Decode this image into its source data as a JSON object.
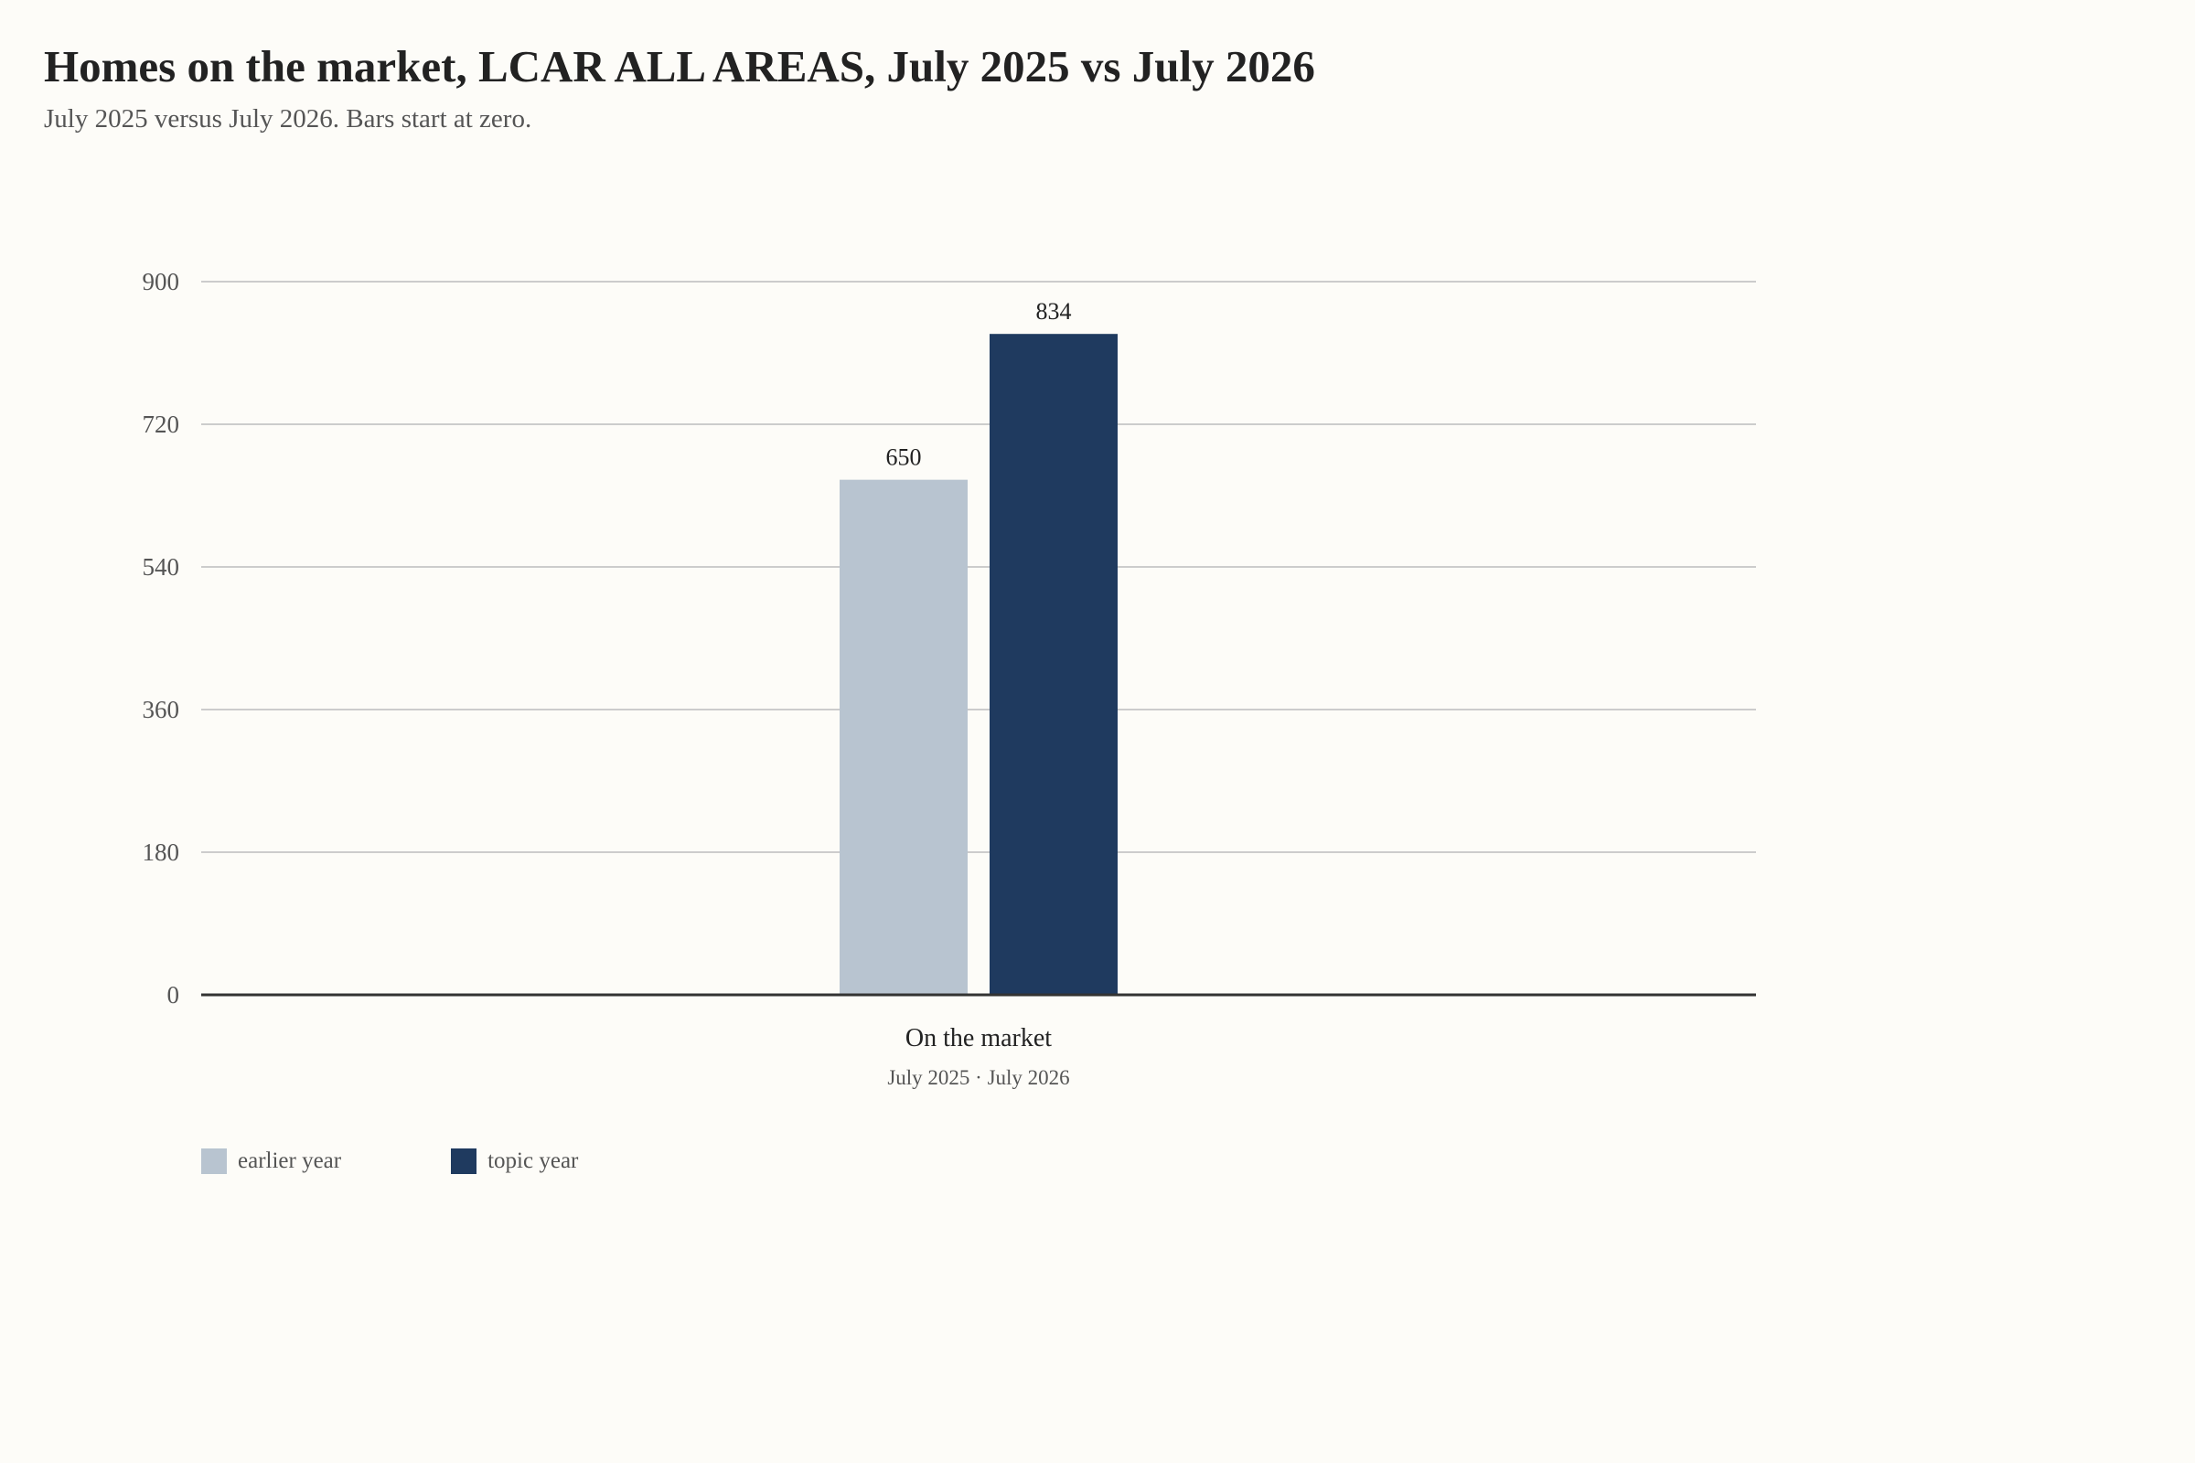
{
  "colors": {
    "background": "#fdfcf8",
    "earlier": "#b8c4d0",
    "topic": "#1f3a5f",
    "grid": "#cccccc",
    "axis": "#333333"
  },
  "chart_data": {
    "type": "bar",
    "title": "Homes on the market, LCAR ALL AREAS, July 2025 vs July 2026",
    "subtitle": "July 2025 versus July 2026. Bars start at zero.",
    "categories": [
      "On the market"
    ],
    "category_sublabels": [
      "July 2025 · July 2026"
    ],
    "series": [
      {
        "name": "earlier year",
        "values": [
          650
        ]
      },
      {
        "name": "topic year",
        "values": [
          834
        ]
      }
    ],
    "ylim": [
      0,
      900
    ],
    "yticks": [
      0,
      180,
      360,
      540,
      720,
      900
    ],
    "grid": true,
    "legend": "bottom-left",
    "data_labels": true
  }
}
